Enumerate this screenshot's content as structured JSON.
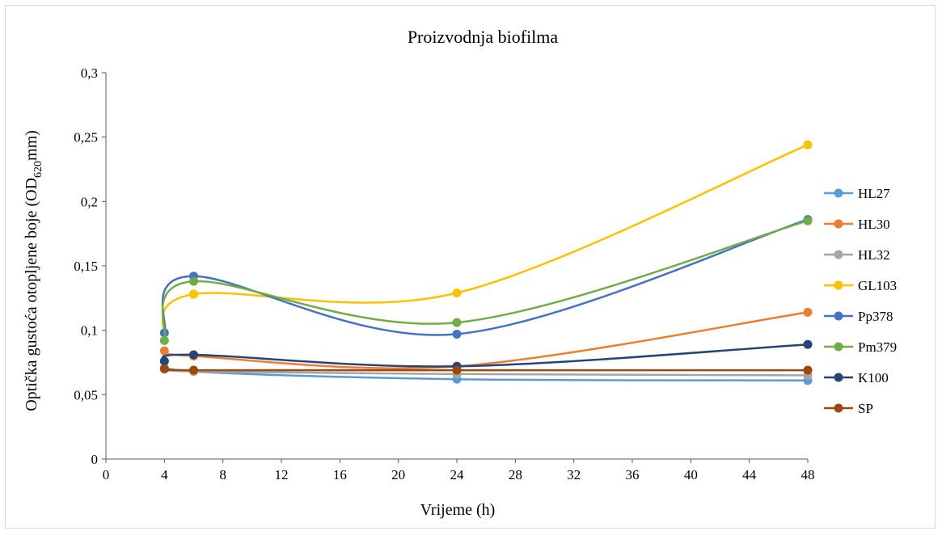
{
  "chart_data": {
    "type": "line",
    "title": "Proizvodnja  biofilma",
    "xlabel": "Vrijeme (h)",
    "ylabel": {
      "prefix": "Optička gustoća otopljene boje (OD",
      "subscript": "620",
      "suffix": "mm)"
    },
    "xlim": [
      0,
      48
    ],
    "ylim": [
      0,
      0.3
    ],
    "x_ticks": [
      0,
      4,
      8,
      12,
      16,
      20,
      24,
      28,
      32,
      36,
      40,
      44,
      48
    ],
    "x_tick_labels": [
      "0",
      "4",
      "8",
      "12",
      "16",
      "20",
      "24",
      "28",
      "32",
      "36",
      "40",
      "44",
      "48"
    ],
    "y_ticks": [
      0,
      0.05,
      0.1,
      0.15,
      0.2,
      0.25,
      0.3
    ],
    "y_tick_labels": [
      "0",
      "0,05",
      "0,1",
      "0,15",
      "0,2",
      "0,25",
      "0,3"
    ],
    "grid": false,
    "smooth": true,
    "legend_position": "right",
    "x": [
      4,
      6,
      24,
      48
    ],
    "series": [
      {
        "name": "HL27",
        "color": "#5B9BD5",
        "values": [
          0.076,
          0.068,
          0.062,
          0.061
        ]
      },
      {
        "name": "HL30",
        "color": "#ED7D31",
        "values": [
          0.084,
          0.08,
          0.072,
          0.114
        ]
      },
      {
        "name": "HL32",
        "color": "#A5A5A5",
        "values": [
          0.071,
          0.068,
          0.066,
          0.065
        ]
      },
      {
        "name": "GL103",
        "color": "#FFC000",
        "values": [
          0.092,
          0.128,
          0.129,
          0.244
        ]
      },
      {
        "name": "Pp378",
        "color": "#4472C4",
        "values": [
          0.098,
          0.142,
          0.097,
          0.186
        ]
      },
      {
        "name": "Pm379",
        "color": "#70AD47",
        "values": [
          0.092,
          0.138,
          0.106,
          0.185
        ]
      },
      {
        "name": "K100",
        "color": "#264478",
        "values": [
          0.076,
          0.081,
          0.072,
          0.089
        ]
      },
      {
        "name": "SP",
        "color": "#9E480E",
        "values": [
          0.07,
          0.069,
          0.069,
          0.069
        ]
      }
    ]
  }
}
